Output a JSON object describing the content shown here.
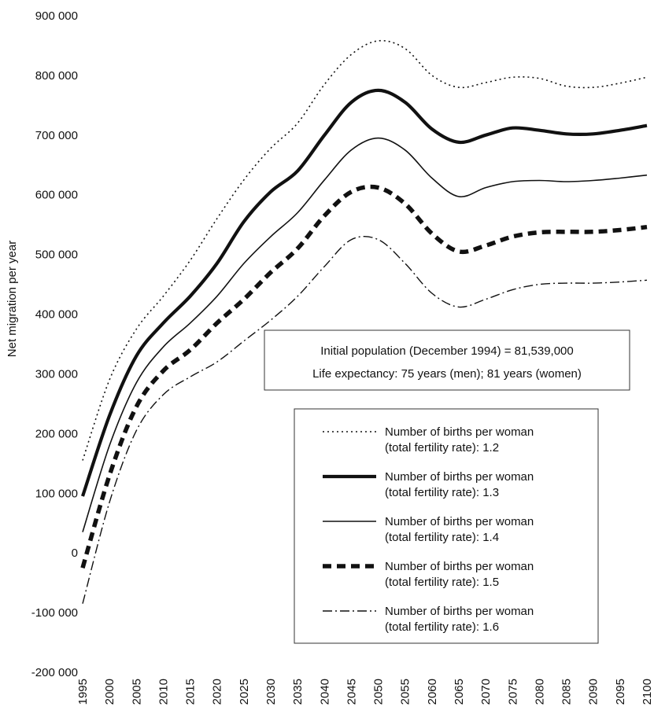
{
  "chart_data": {
    "type": "line",
    "title": "",
    "xlabel": "",
    "ylabel": "Net migration per year",
    "xlim": [
      1995,
      2100
    ],
    "ylim": [
      -200000,
      900000
    ],
    "x_ticks": [
      "1995",
      "2000",
      "2005",
      "2010",
      "2015",
      "2020",
      "2025",
      "2030",
      "2035",
      "2040",
      "2045",
      "2050",
      "2055",
      "2060",
      "2065",
      "2070",
      "2075",
      "2080",
      "2085",
      "2090",
      "2095",
      "2100"
    ],
    "y_ticks": [
      "-200 000",
      "-100 000",
      "0",
      "100 000",
      "200 000",
      "300 000",
      "400 000",
      "500 000",
      "600 000",
      "700 000",
      "800 000",
      "900 000"
    ],
    "y_tick_values": [
      -200000,
      -100000,
      0,
      100000,
      200000,
      300000,
      400000,
      500000,
      600000,
      700000,
      800000,
      900000
    ],
    "grid": false,
    "x": [
      1995,
      2000,
      2005,
      2010,
      2015,
      2020,
      2025,
      2030,
      2035,
      2040,
      2045,
      2050,
      2055,
      2060,
      2065,
      2070,
      2075,
      2080,
      2085,
      2090,
      2095,
      2100
    ],
    "series": [
      {
        "name": "Number of births per woman (total fertility rate): 1.2",
        "style": "dotted",
        "values": [
          155000,
          290000,
          375000,
          430000,
          490000,
          560000,
          625000,
          678000,
          720000,
          785000,
          835000,
          858000,
          845000,
          800000,
          780000,
          788000,
          797000,
          795000,
          782000,
          780000,
          787000,
          797000
        ]
      },
      {
        "name": "Number of births per woman (total fertility rate): 1.3",
        "style": "thick-solid",
        "values": [
          95000,
          230000,
          330000,
          385000,
          430000,
          485000,
          555000,
          605000,
          640000,
          700000,
          755000,
          775000,
          755000,
          710000,
          688000,
          700000,
          712000,
          708000,
          702000,
          702000,
          708000,
          716000
        ]
      },
      {
        "name": "Number of births per woman (total fertility rate): 1.4",
        "style": "solid",
        "values": [
          35000,
          180000,
          285000,
          345000,
          385000,
          430000,
          485000,
          530000,
          570000,
          625000,
          675000,
          695000,
          675000,
          628000,
          597000,
          612000,
          622000,
          624000,
          622000,
          624000,
          628000,
          633000
        ]
      },
      {
        "name": "Number of births per woman (total fertility rate): 1.5",
        "style": "thick-dashed",
        "values": [
          -25000,
          130000,
          245000,
          305000,
          340000,
          385000,
          425000,
          470000,
          510000,
          565000,
          605000,
          612000,
          585000,
          535000,
          505000,
          515000,
          530000,
          537000,
          538000,
          538000,
          541000,
          546000
        ]
      },
      {
        "name": "Number of births per woman (total fertility rate): 1.6",
        "style": "dash-dot",
        "values": [
          -85000,
          85000,
          205000,
          265000,
          295000,
          320000,
          355000,
          390000,
          430000,
          480000,
          525000,
          525000,
          485000,
          435000,
          412000,
          425000,
          441000,
          450000,
          452000,
          452000,
          454000,
          457000
        ]
      }
    ],
    "annotations": [
      "Initial population (December 1994) = 81,539,000",
      "Life expectancy: 75 years (men); 81 years (women)"
    ],
    "legend": {
      "placement": "bottom-right",
      "entries": [
        {
          "line1": "Number of births per woman",
          "line2": "(total fertility rate): 1.2",
          "style": "dotted"
        },
        {
          "line1": "Number of births per woman",
          "line2": "(total fertility rate): 1.3",
          "style": "thick-solid"
        },
        {
          "line1": "Number of births per woman",
          "line2": "(total fertility rate): 1.4",
          "style": "solid"
        },
        {
          "line1": "Number of births per woman",
          "line2": "(total fertility rate): 1.5",
          "style": "thick-dashed"
        },
        {
          "line1": "Number of births per woman",
          "line2": "(total fertility rate): 1.6",
          "style": "dash-dot"
        }
      ]
    }
  }
}
